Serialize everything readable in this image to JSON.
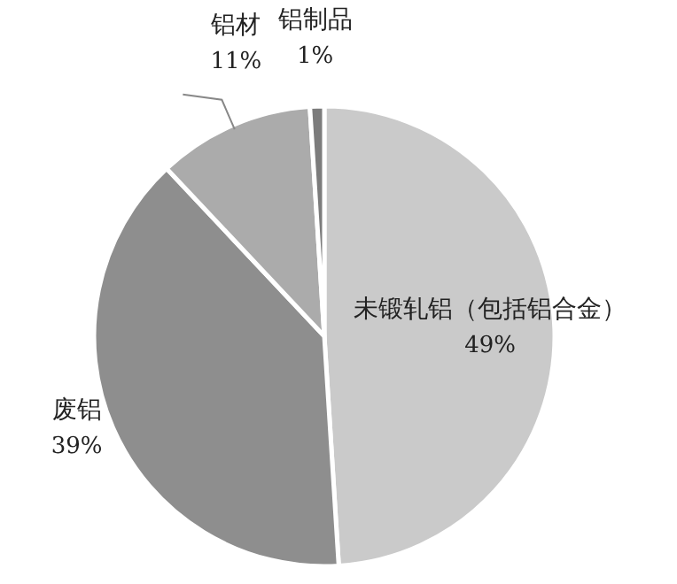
{
  "chart_data": {
    "type": "pie",
    "categories": [
      "未锻轧铝（包括铝合金）",
      "废铝",
      "铝材",
      "铝制品"
    ],
    "values": [
      49,
      39,
      11,
      1
    ],
    "value_labels": [
      "49%",
      "39%",
      "11%",
      "1%"
    ],
    "colors": [
      "#cacaca",
      "#8e8e8e",
      "#ababab",
      "#7c7c7c"
    ],
    "legend": false
  }
}
